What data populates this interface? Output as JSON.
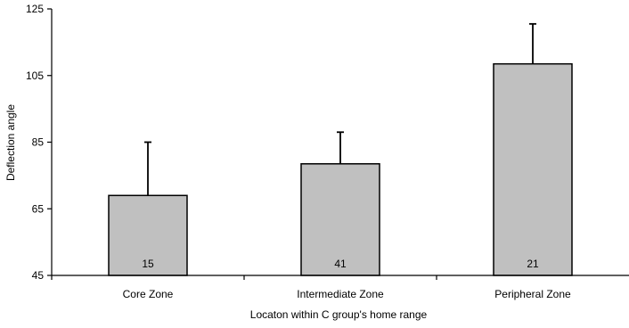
{
  "chart_data": {
    "type": "bar",
    "title": "",
    "xlabel": "Locaton within C group's home range",
    "ylabel": "Deflection angle",
    "ylim": [
      45,
      125
    ],
    "yticks": [
      45,
      65,
      85,
      105,
      125
    ],
    "categories": [
      "Core Zone",
      "Intermediate Zone",
      "Peripheral Zone"
    ],
    "values": [
      69,
      78.5,
      108.5
    ],
    "error_upper": [
      85,
      88,
      120.5
    ],
    "sample_sizes": [
      "15",
      "41",
      "21"
    ],
    "bar_color": "#c0c0c0",
    "edge_color": "#000000",
    "grid": false,
    "legend": "none",
    "error_bars": "upper only"
  }
}
